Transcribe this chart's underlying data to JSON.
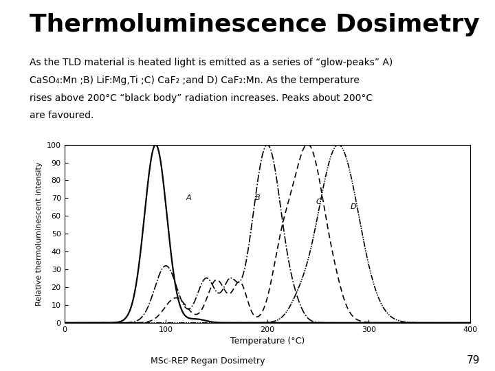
{
  "title": "Thermoluminescence Dosimetry",
  "subtitle_line1": "As the TLD material is heated light is emitted as a series of “glow-peaks” A)",
  "subtitle_line2": "CaSO₄:Mn ;B) LiF:Mg,Ti ;C) CaF₂ ;and D) CaF₂:Mn. As the temperature",
  "subtitle_line3": "rises above 200°C “black body” radiation increases. Peaks about 200°C",
  "subtitle_line4": "are favoured.",
  "xlabel": "Temperature (°C)",
  "ylabel": "Relative thermoluminescent intensity",
  "xlim": [
    0,
    400
  ],
  "ylim": [
    0,
    100
  ],
  "xticks": [
    0,
    100,
    200,
    300,
    400
  ],
  "yticks": [
    0,
    10,
    20,
    30,
    40,
    50,
    60,
    70,
    80,
    90,
    100
  ],
  "footer": "MSc-REP Regan Dosimetry",
  "page_number": "79",
  "background_color": "#ffffff",
  "text_color": "#000000",
  "title_fontsize": 26,
  "subtitle_fontsize": 10,
  "axis_label_fontsize": 9,
  "tick_fontsize": 8,
  "footer_fontsize": 9,
  "page_fontsize": 11
}
